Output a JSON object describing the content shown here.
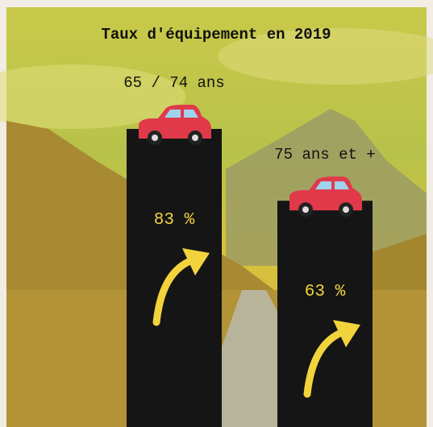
{
  "chart_data": {
    "type": "bar",
    "title": "Taux d'équipement en 2019",
    "categories": [
      "65 / 74 ans",
      "75 ans et +"
    ],
    "values": [
      83,
      63
    ],
    "value_labels": [
      "83 %",
      "63 %"
    ],
    "color": "#151515"
  }
}
